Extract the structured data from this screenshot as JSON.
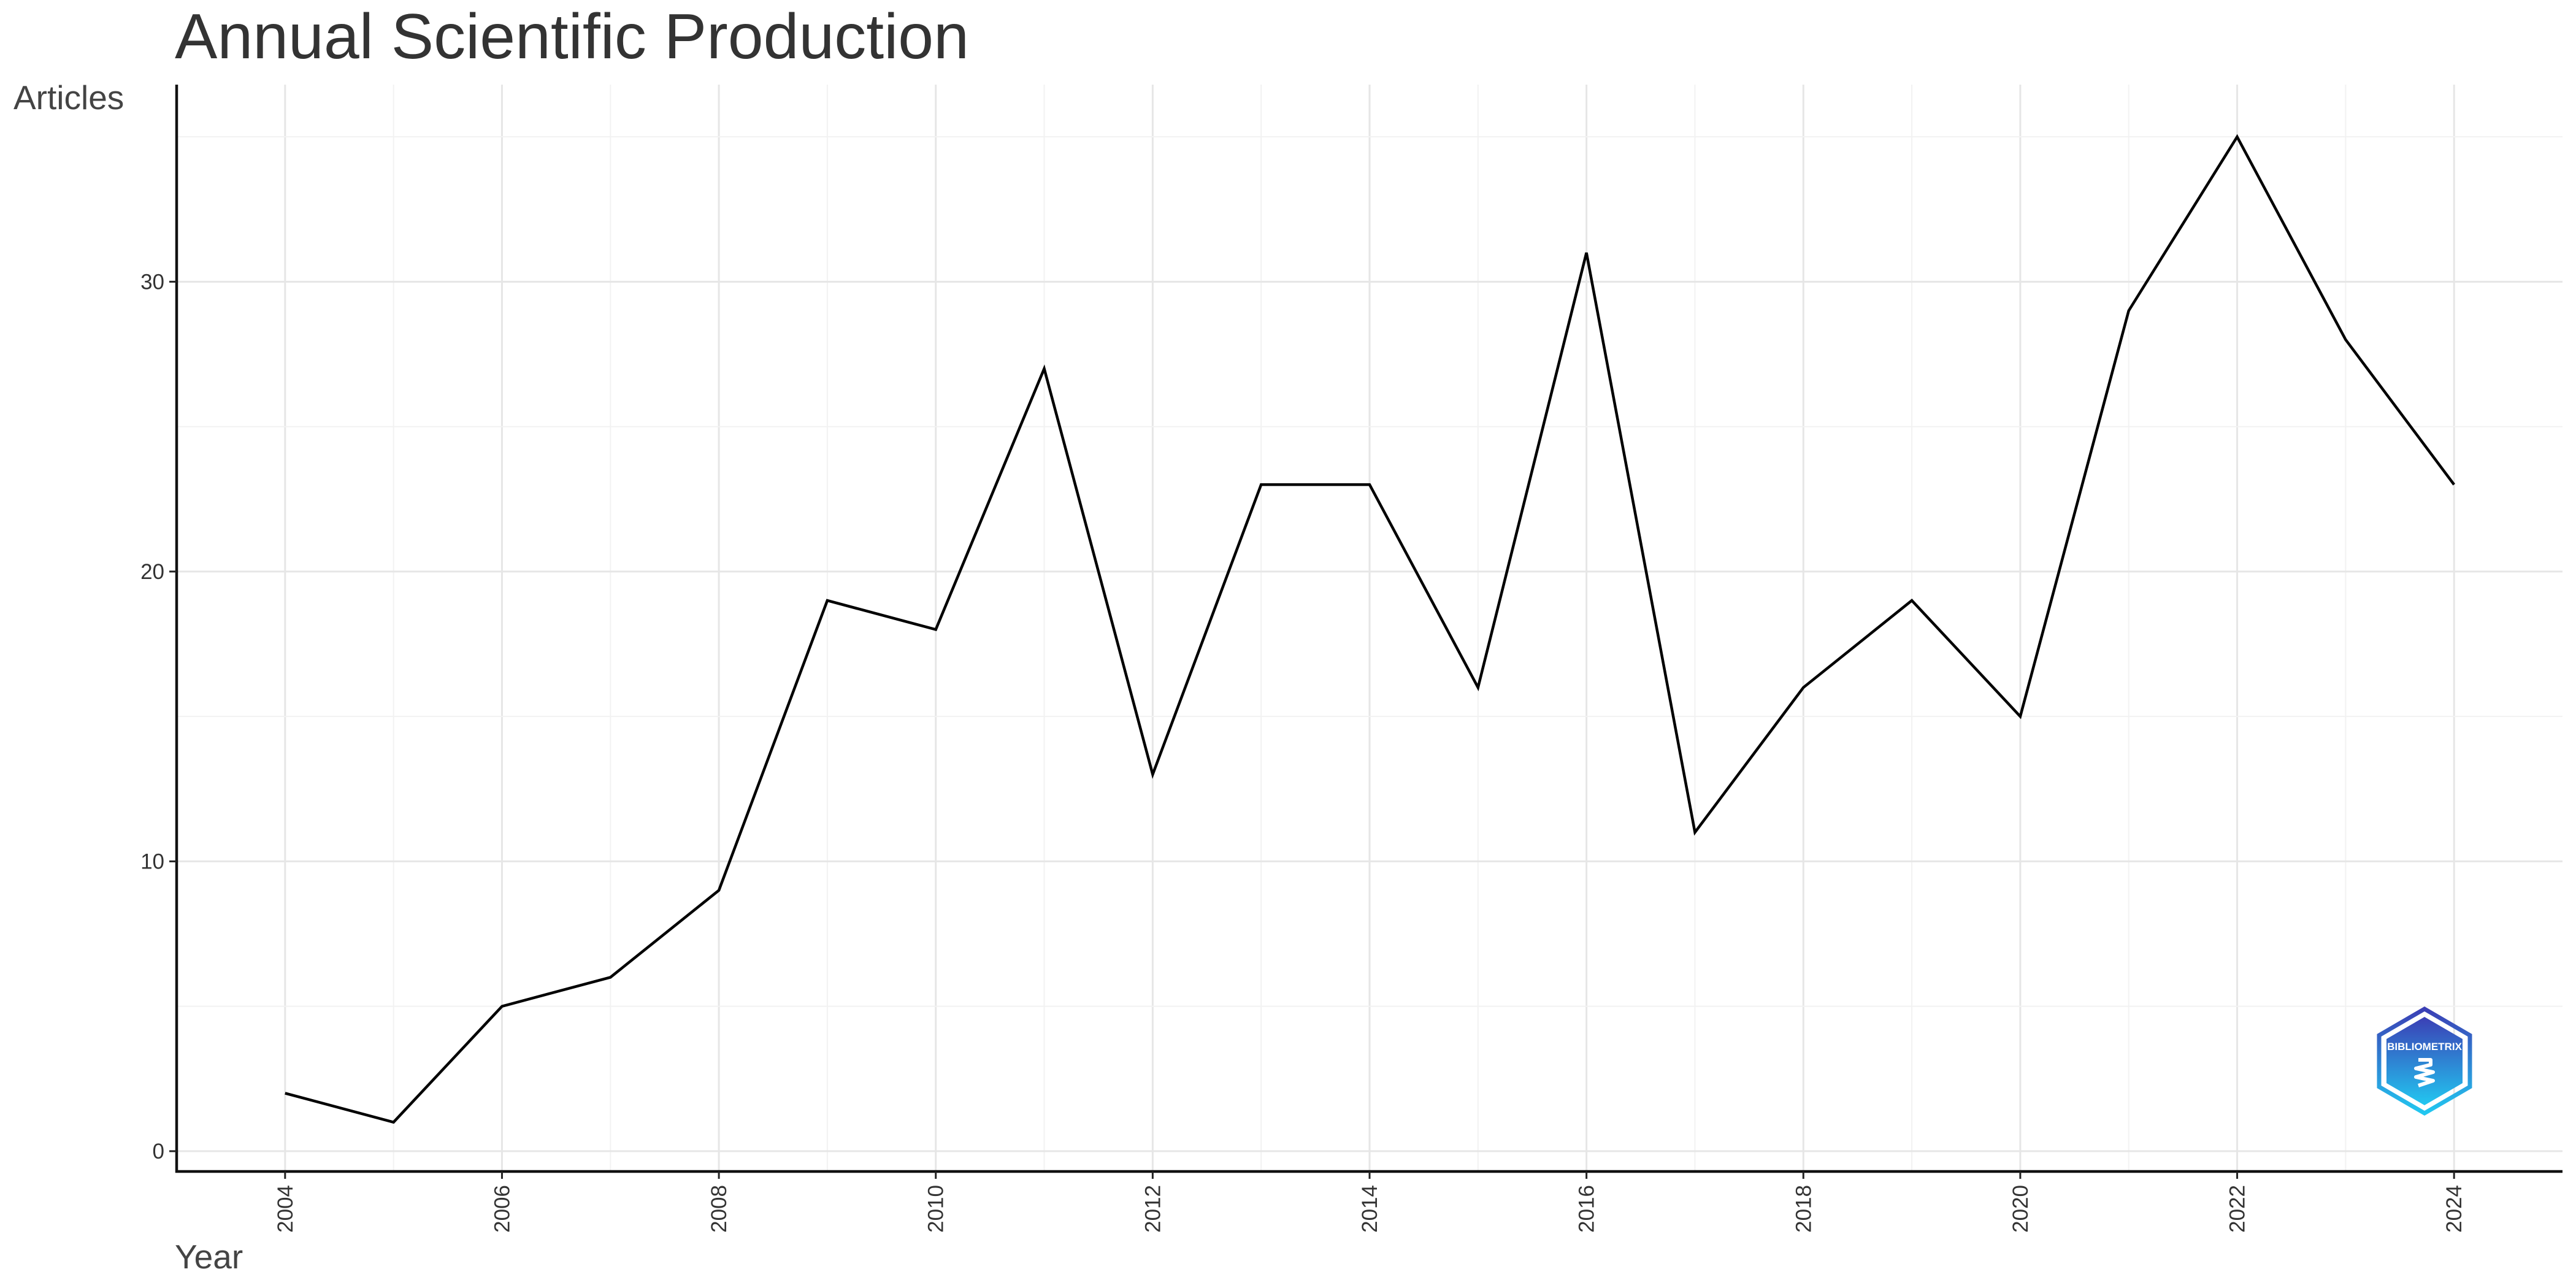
{
  "chart_data": {
    "type": "line",
    "title": "Annual Scientific Production",
    "xlabel": "Year",
    "ylabel": "Articles",
    "x": [
      2004,
      2005,
      2006,
      2007,
      2008,
      2009,
      2010,
      2011,
      2012,
      2013,
      2014,
      2015,
      2016,
      2017,
      2018,
      2019,
      2020,
      2021,
      2022,
      2023,
      2024
    ],
    "series": [
      {
        "values": [
          2,
          1,
          5,
          6,
          9,
          19,
          18,
          27,
          13,
          23,
          23,
          16,
          31,
          11,
          16,
          19,
          15,
          29,
          35,
          28,
          23
        ]
      }
    ],
    "xlim": [
      2003,
      2025
    ],
    "ylim": [
      -0.7,
      36.8
    ],
    "x_ticks": [
      "2004",
      "2006",
      "2008",
      "2010",
      "2012",
      "2014",
      "2016",
      "2018",
      "2020",
      "2022",
      "2024"
    ],
    "y_ticks": [
      "0",
      "10",
      "20",
      "30"
    ],
    "grid": true,
    "line_color": "#000000"
  },
  "logo": {
    "text": "BIBLIOMETRIX",
    "color_top": "#3b3fb5",
    "color_bottom": "#22c7f0"
  }
}
